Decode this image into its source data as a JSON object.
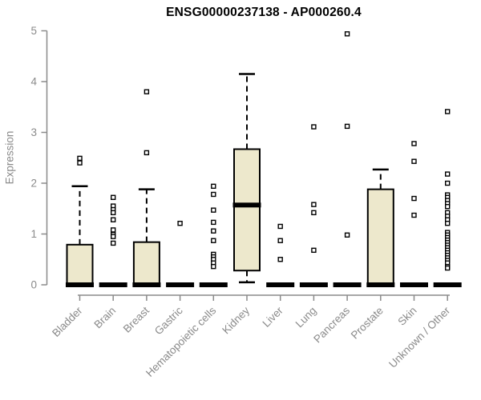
{
  "chart_data": {
    "type": "boxplot",
    "title": "ENSG00000237138 - AP000260.4",
    "ylabel": "Expression",
    "xlabel": "",
    "ylim": [
      0,
      5
    ],
    "yticks": [
      0,
      1,
      2,
      3,
      4,
      5
    ],
    "grid": false,
    "legend": null,
    "x_label_rotation_deg": 45,
    "categories": [
      "Bladder",
      "Brain",
      "Breast",
      "Gastric",
      "Hematopoietic cells",
      "Kidney",
      "Liver",
      "Lung",
      "Pancreas",
      "Prostate",
      "Skin",
      "Unknown / Other"
    ],
    "series": [
      {
        "category": "Bladder",
        "min": 0,
        "q1": 0,
        "median": 0,
        "q3": 0.79,
        "max": 1.94,
        "outliers": [
          2.49,
          2.4
        ]
      },
      {
        "category": "Brain",
        "min": 0,
        "q1": 0,
        "median": 0,
        "q3": 0,
        "max": 0,
        "outliers": [
          1.72,
          1.55,
          1.48,
          1.42,
          1.28,
          1.08,
          0.99,
          0.95,
          0.82
        ]
      },
      {
        "category": "Breast",
        "min": 0,
        "q1": 0,
        "median": 0,
        "q3": 0.84,
        "max": 1.88,
        "outliers": [
          3.8,
          2.6
        ]
      },
      {
        "category": "Gastric",
        "min": 0,
        "q1": 0,
        "median": 0,
        "q3": 0,
        "max": 0,
        "outliers": [
          1.21
        ]
      },
      {
        "category": "Hematopoietic cells",
        "min": 0,
        "q1": 0,
        "median": 0,
        "q3": 0,
        "max": 0,
        "outliers": [
          1.94,
          1.78,
          1.47,
          1.23,
          1.06,
          0.87,
          0.6,
          0.55,
          0.5,
          0.43,
          0.36
        ]
      },
      {
        "category": "Kidney",
        "min": 0.05,
        "q1": 0.28,
        "median": 1.57,
        "q3": 2.67,
        "max": 4.15,
        "outliers": []
      },
      {
        "category": "Liver",
        "min": 0,
        "q1": 0,
        "median": 0,
        "q3": 0,
        "max": 0,
        "outliers": [
          1.15,
          0.87,
          0.5
        ]
      },
      {
        "category": "Lung",
        "min": 0,
        "q1": 0,
        "median": 0,
        "q3": 0,
        "max": 0,
        "outliers": [
          3.11,
          1.58,
          1.42,
          0.68
        ]
      },
      {
        "category": "Pancreas",
        "min": 0,
        "q1": 0,
        "median": 0,
        "q3": 0,
        "max": 0,
        "outliers": [
          4.94,
          3.12,
          0.98
        ]
      },
      {
        "category": "Prostate",
        "min": 0,
        "q1": 0,
        "median": 0,
        "q3": 1.88,
        "max": 2.27,
        "outliers": []
      },
      {
        "category": "Skin",
        "min": 0,
        "q1": 0,
        "median": 0,
        "q3": 0,
        "max": 0,
        "outliers": [
          2.78,
          2.43,
          1.7,
          1.37
        ]
      },
      {
        "category": "Unknown / Other",
        "min": 0,
        "q1": 0,
        "median": 0,
        "q3": 0,
        "max": 0,
        "outliers": [
          3.41,
          2.18,
          2.0,
          1.77,
          1.72,
          1.66,
          1.6,
          1.54,
          1.42,
          1.35,
          1.28,
          1.21,
          1.03,
          0.98,
          0.93,
          0.88,
          0.83,
          0.78,
          0.73,
          0.68,
          0.63,
          0.58,
          0.53,
          0.48,
          0.43,
          0.36,
          0.33
        ]
      }
    ],
    "colors": {
      "box_fill": "#EDE8CC",
      "box_border": "#000000",
      "median": "#000000",
      "whisker": "#000000",
      "outlier_fill": "#ffffff",
      "outlier_border": "#000000",
      "axis": "#8a8a8a",
      "tick_label": "#8a8a8a",
      "title": "#000000",
      "background": "#ffffff"
    }
  }
}
